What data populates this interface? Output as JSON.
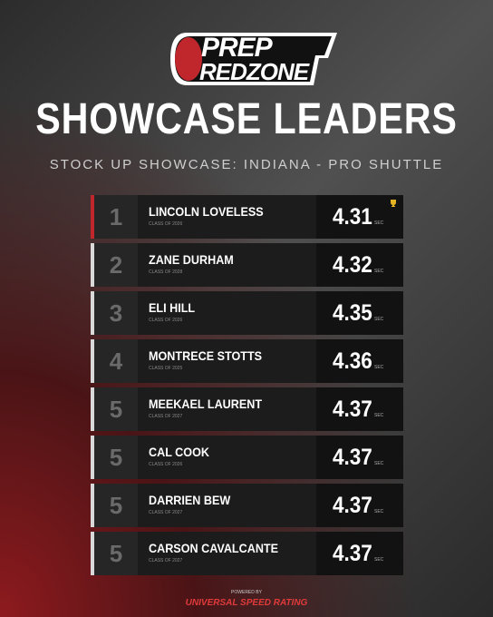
{
  "logo": {
    "top": "PREP",
    "bottom": "REDZONE"
  },
  "title": "SHOWCASE LEADERS",
  "subtitle": "STOCK UP SHOWCASE: INDIANA - PRO SHUTTLE",
  "rows": [
    {
      "rank": "1",
      "name": "LINCOLN LOVELESS",
      "class": "CLASS OF 2026",
      "time": "4.31",
      "unit": "SEC"
    },
    {
      "rank": "2",
      "name": "ZANE DURHAM",
      "class": "CLASS OF 2028",
      "time": "4.32",
      "unit": "SEC"
    },
    {
      "rank": "3",
      "name": "ELI HILL",
      "class": "CLASS OF 2026",
      "time": "4.35",
      "unit": "SEC"
    },
    {
      "rank": "4",
      "name": "MONTRECE STOTTS",
      "class": "CLASS OF 2025",
      "time": "4.36",
      "unit": "SEC"
    },
    {
      "rank": "5",
      "name": "MEEKAEL LAURENT",
      "class": "CLASS OF 2027",
      "time": "4.37",
      "unit": "SEC"
    },
    {
      "rank": "5",
      "name": "CAL COOK",
      "class": "CLASS OF 2026",
      "time": "4.37",
      "unit": "SEC"
    },
    {
      "rank": "5",
      "name": "DARRIEN BEW",
      "class": "CLASS OF 2027",
      "time": "4.37",
      "unit": "SEC"
    },
    {
      "rank": "5",
      "name": "CARSON CAVALCANTE",
      "class": "CLASS OF 2027",
      "time": "4.37",
      "unit": "SEC"
    }
  ],
  "footer": {
    "powered": "POWERED BY",
    "brand": "UNIVERSAL SPEED RATING"
  }
}
